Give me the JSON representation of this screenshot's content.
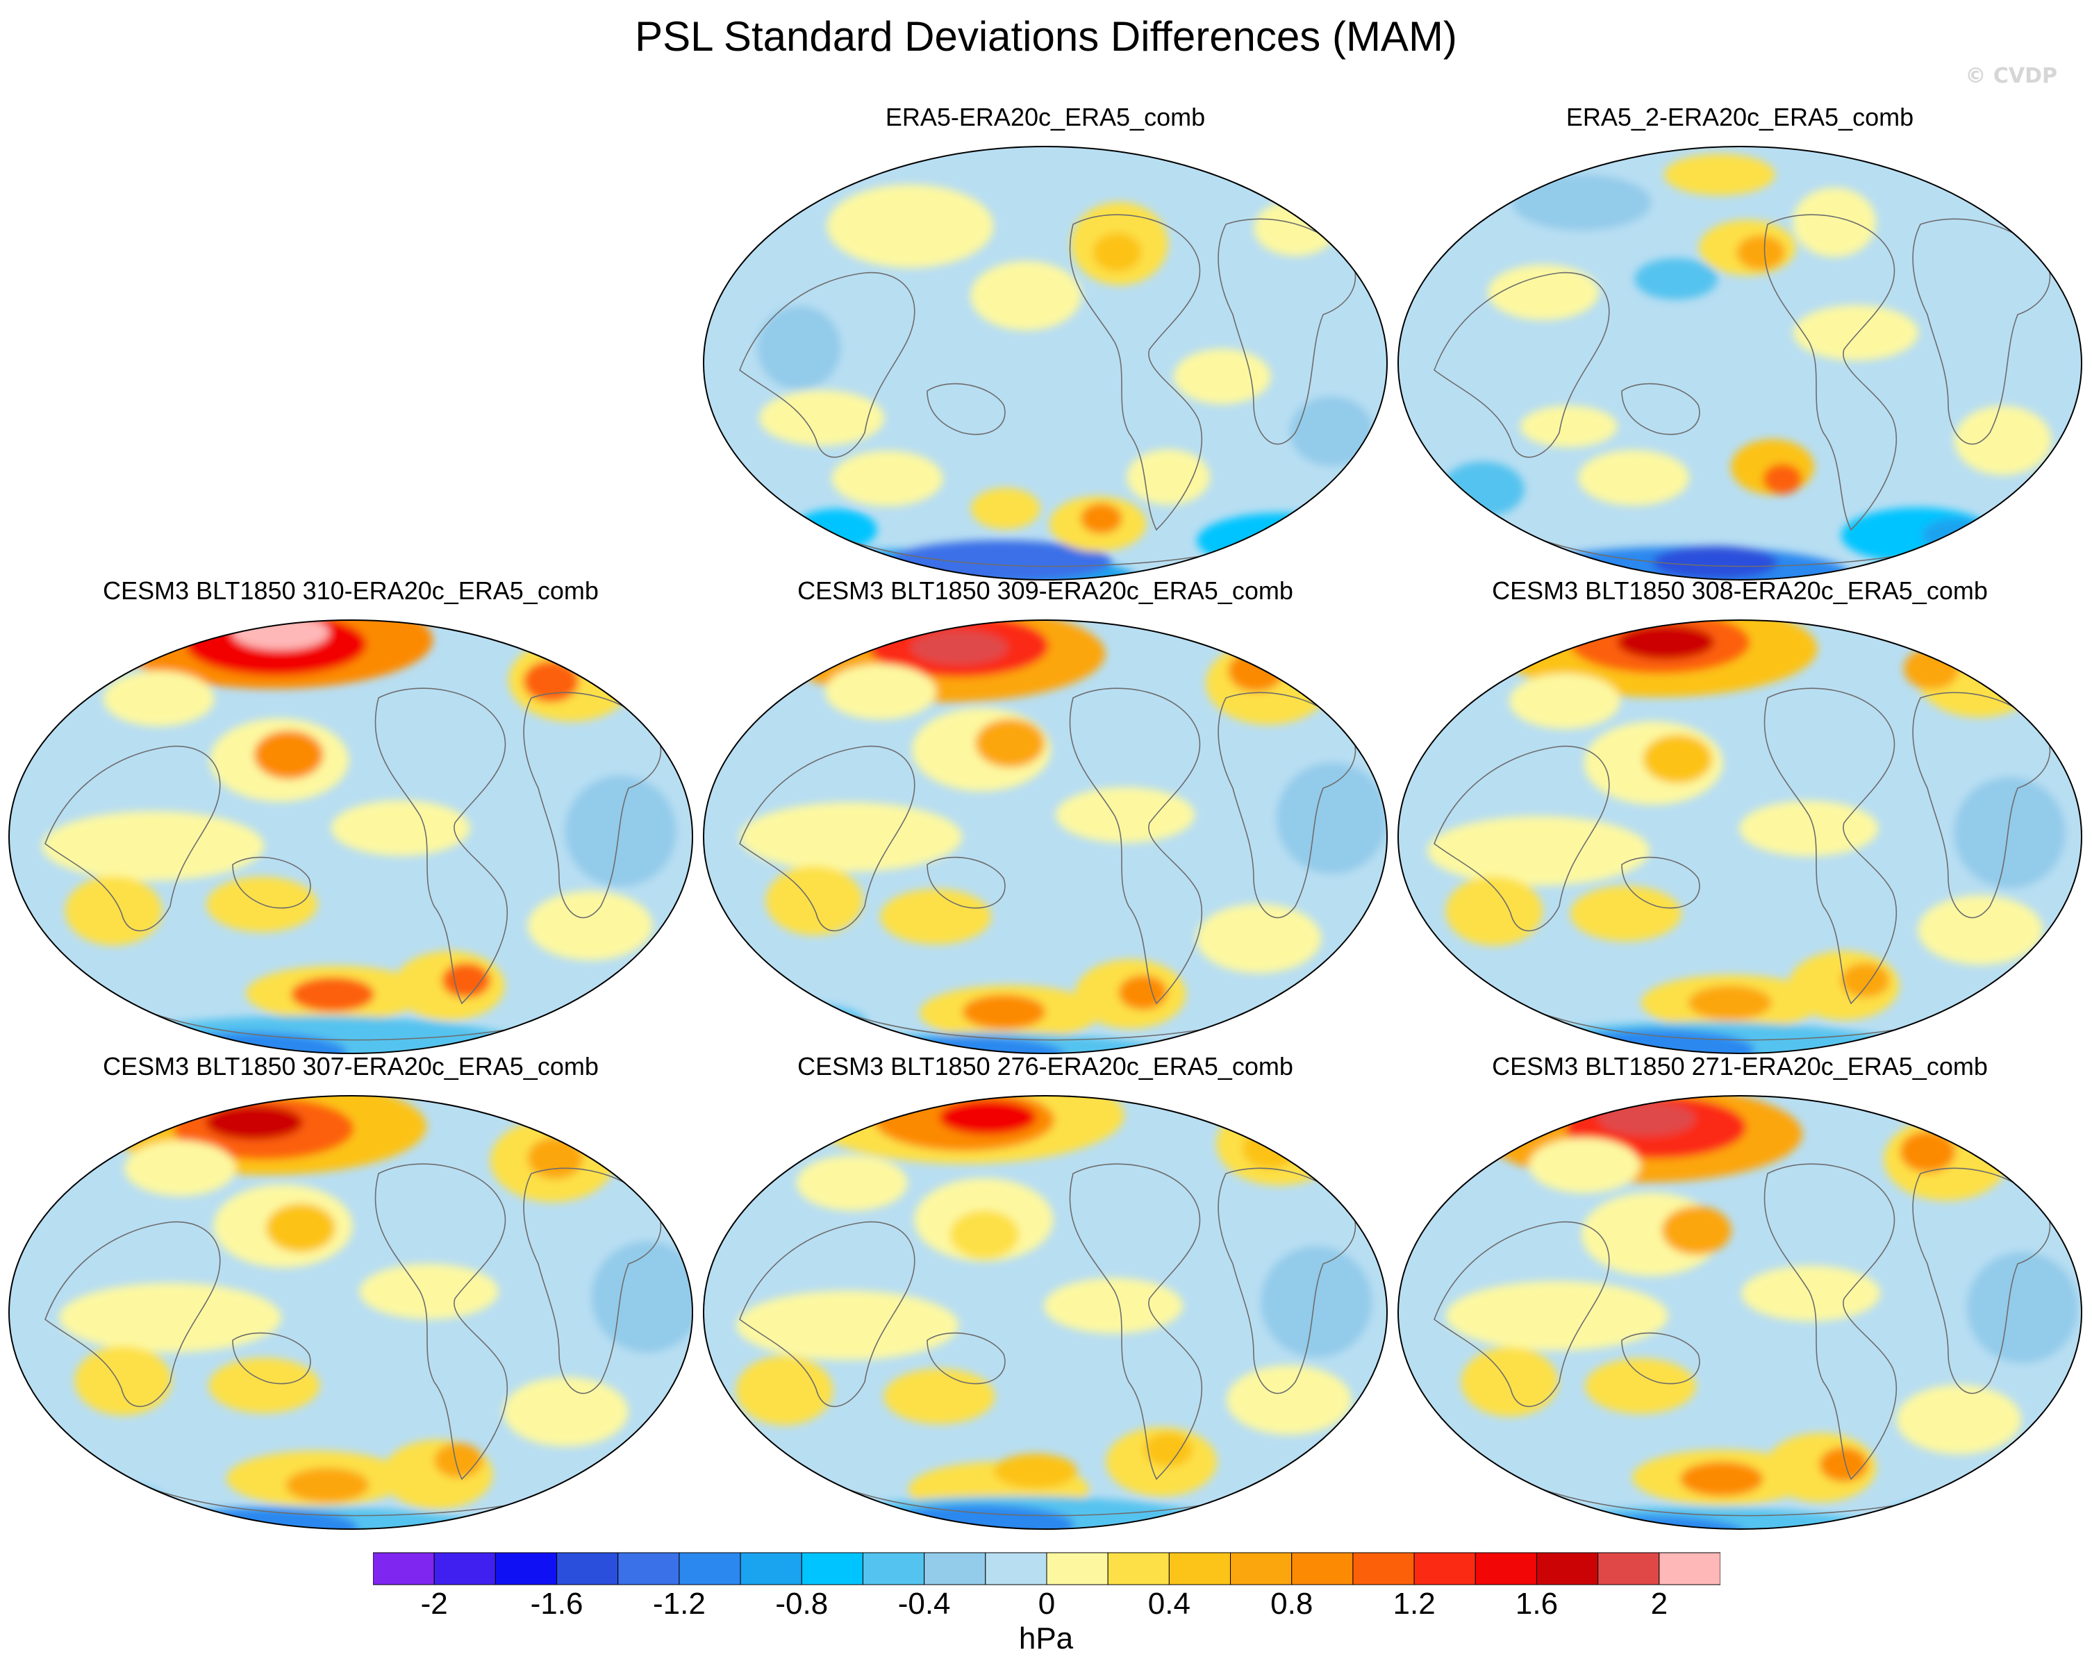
{
  "title": "PSL Standard Deviations Differences (MAM)",
  "watermark": "© CVDP",
  "panels": [
    {
      "label": "ERA5-ERA20c_ERA5_comb",
      "pattern": "obs1"
    },
    {
      "label": "ERA5_2-ERA20c_ERA5_comb",
      "pattern": "obs2"
    },
    {
      "label": "CESM3 BLT1850 310-ERA20c_ERA5_comb",
      "pattern": "model"
    },
    {
      "label": "CESM3 BLT1850 309-ERA20c_ERA5_comb",
      "pattern": "model"
    },
    {
      "label": "CESM3 BLT1850 308-ERA20c_ERA5_comb",
      "pattern": "model"
    },
    {
      "label": "CESM3 BLT1850 307-ERA20c_ERA5_comb",
      "pattern": "model"
    },
    {
      "label": "CESM3 BLT1850 276-ERA20c_ERA5_comb",
      "pattern": "model"
    },
    {
      "label": "CESM3 BLT1850 271-ERA20c_ERA5_comb",
      "pattern": "model"
    }
  ],
  "colorbar": {
    "units": "hPa",
    "tick_labels": [
      "-2",
      "-1.6",
      "-1.2",
      "-0.8",
      "-0.4",
      "0",
      "0.4",
      "0.8",
      "1.2",
      "1.6",
      "2"
    ],
    "colors": [
      "#7f26f0",
      "#4020f0",
      "#1010f5",
      "#2a4fdc",
      "#3a70e8",
      "#2b88ef",
      "#1aa3ef",
      "#00c4ff",
      "#55c3ef",
      "#93cbea",
      "#b8def2",
      "#fdf8a0",
      "#fde047",
      "#fcc318",
      "#fca60d",
      "#fc8a02",
      "#fc6009",
      "#fb2a12",
      "#f20606",
      "#cc0305",
      "#e04848",
      "#ffb8b8"
    ]
  }
}
